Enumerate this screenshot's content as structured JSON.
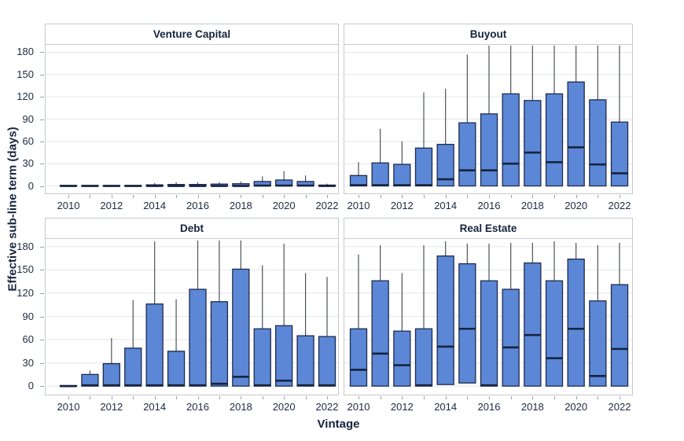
{
  "chart_data": {
    "type": "box",
    "title": "",
    "xlabel": "Vintage",
    "ylabel": "Effective sub-line term (days)",
    "years": [
      2010,
      2011,
      2012,
      2013,
      2014,
      2015,
      2016,
      2017,
      2018,
      2019,
      2020,
      2021,
      2022
    ],
    "x_label_step": 2,
    "yticks": [
      0,
      30,
      60,
      90,
      120,
      150,
      180
    ],
    "ylim": [
      -10,
      190
    ],
    "grid": "horizontal-only",
    "legend": "none",
    "facet_layout": "2x2",
    "colors": {
      "box_fill": "#5b87d6",
      "box_border": "#1e2b4d",
      "median": "#16233f",
      "whisker": "#4e5358",
      "grid": "#e4e6e8",
      "panel_border": "#c6c9cc",
      "text": "#16243d"
    },
    "panels": [
      {
        "title": "Venture Capital",
        "q1": [
          0,
          0,
          0,
          0,
          0,
          0,
          0,
          0,
          0,
          0,
          0,
          0,
          0
        ],
        "median": [
          0,
          0,
          0,
          0,
          0,
          0,
          0,
          0,
          0,
          0.5,
          0.5,
          0.5,
          0
        ],
        "q3": [
          0.7,
          0.7,
          0.7,
          0.7,
          1.5,
          2,
          2,
          2.5,
          3,
          6,
          8,
          6,
          1.2
        ],
        "whisker_high": [
          0.7,
          0.7,
          0.7,
          0.7,
          4,
          5,
          5,
          5,
          6,
          13,
          20,
          14,
          3
        ]
      },
      {
        "title": "Buyout",
        "q1": [
          0,
          0,
          0,
          0,
          0,
          0,
          0,
          0,
          0,
          0,
          0,
          0,
          0
        ],
        "median": [
          1,
          1,
          1,
          1,
          9,
          21,
          21,
          30,
          45,
          32,
          52,
          29,
          17
        ],
        "q3": [
          14,
          31,
          29,
          51,
          56,
          85,
          97,
          124,
          115,
          124,
          140,
          116,
          86
        ],
        "whisker_high": [
          32,
          77,
          60,
          126,
          131,
          177,
          189,
          189,
          189,
          189,
          189,
          189,
          189
        ]
      },
      {
        "title": "Debt",
        "q1": [
          0,
          0,
          0,
          0,
          0,
          0,
          0,
          0,
          0,
          0,
          0,
          0,
          0
        ],
        "median": [
          0,
          1,
          1,
          1,
          1,
          1,
          1,
          3,
          12,
          1,
          7,
          1,
          1
        ],
        "q3": [
          0.7,
          15,
          29,
          49,
          106,
          45,
          125,
          109,
          151,
          74,
          78,
          65,
          64
        ],
        "whisker_high": [
          0.7,
          20,
          62,
          111,
          187,
          112,
          188,
          188,
          188,
          156,
          184,
          146,
          141
        ]
      },
      {
        "title": "Real Estate",
        "q1": [
          0,
          0,
          0,
          0,
          2,
          4,
          0,
          0,
          0,
          0,
          0,
          0,
          0
        ],
        "median": [
          21,
          42,
          27,
          1,
          51,
          74,
          1,
          50,
          66,
          36,
          74,
          13,
          48
        ],
        "q3": [
          74,
          136,
          71,
          74,
          168,
          158,
          136,
          125,
          159,
          136,
          164,
          110,
          131
        ],
        "whisker_high": [
          170,
          182,
          146,
          182,
          187,
          184,
          184,
          185,
          185,
          187,
          185,
          182,
          185
        ]
      }
    ]
  }
}
